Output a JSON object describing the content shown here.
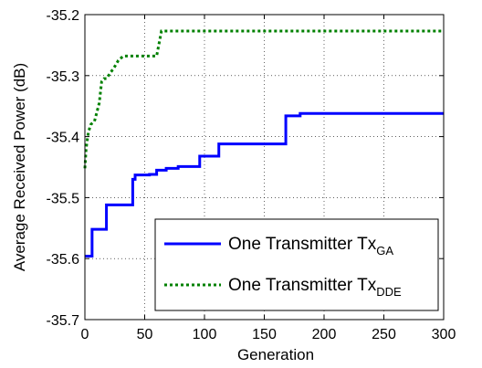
{
  "chart_data": {
    "type": "line",
    "xlabel": "Generation",
    "ylabel": "Average Received Power (dB)",
    "xlim": [
      0,
      300
    ],
    "ylim": [
      -35.7,
      -35.2
    ],
    "xticks": [
      0,
      50,
      100,
      150,
      200,
      250,
      300
    ],
    "yticks": [
      -35.7,
      -35.6,
      -35.5,
      -35.4,
      -35.3,
      -35.2
    ],
    "xtick_labels": [
      "0",
      "50",
      "100",
      "150",
      "200",
      "250",
      "300"
    ],
    "ytick_labels": [
      "-35.7",
      "-35.6",
      "-35.5",
      "-35.4",
      "-35.3",
      "-35.2"
    ],
    "grid": true,
    "legend_position": "bottom-right",
    "series": [
      {
        "legend_main": "One Transmitter Tx",
        "legend_sub": "GA",
        "color": "#0000ff",
        "style": "solid",
        "x": [
          0,
          6,
          6,
          18,
          18,
          40,
          40,
          42,
          42,
          54,
          54,
          60,
          60,
          68,
          68,
          78,
          78,
          96,
          96,
          112,
          112,
          168,
          168,
          180,
          180,
          300
        ],
        "y": [
          -35.596,
          -35.596,
          -35.552,
          -35.552,
          -35.512,
          -35.512,
          -35.47,
          -35.47,
          -35.463,
          -35.463,
          -35.462,
          -35.462,
          -35.455,
          -35.455,
          -35.452,
          -35.452,
          -35.449,
          -35.449,
          -35.432,
          -35.432,
          -35.412,
          -35.412,
          -35.366,
          -35.366,
          -35.362,
          -35.362
        ]
      },
      {
        "legend_main": "One Transmitter Tx",
        "legend_sub": "DDE",
        "color": "#008000",
        "style": "dotted",
        "x": [
          0,
          1,
          2,
          3,
          5,
          8,
          10,
          12,
          14,
          16,
          18,
          25,
          28,
          32,
          60,
          64,
          300
        ],
        "y": [
          -35.452,
          -35.42,
          -35.405,
          -35.392,
          -35.38,
          -35.375,
          -35.36,
          -35.345,
          -35.31,
          -35.305,
          -35.305,
          -35.285,
          -35.275,
          -35.268,
          -35.268,
          -35.227,
          -35.227
        ]
      }
    ]
  }
}
